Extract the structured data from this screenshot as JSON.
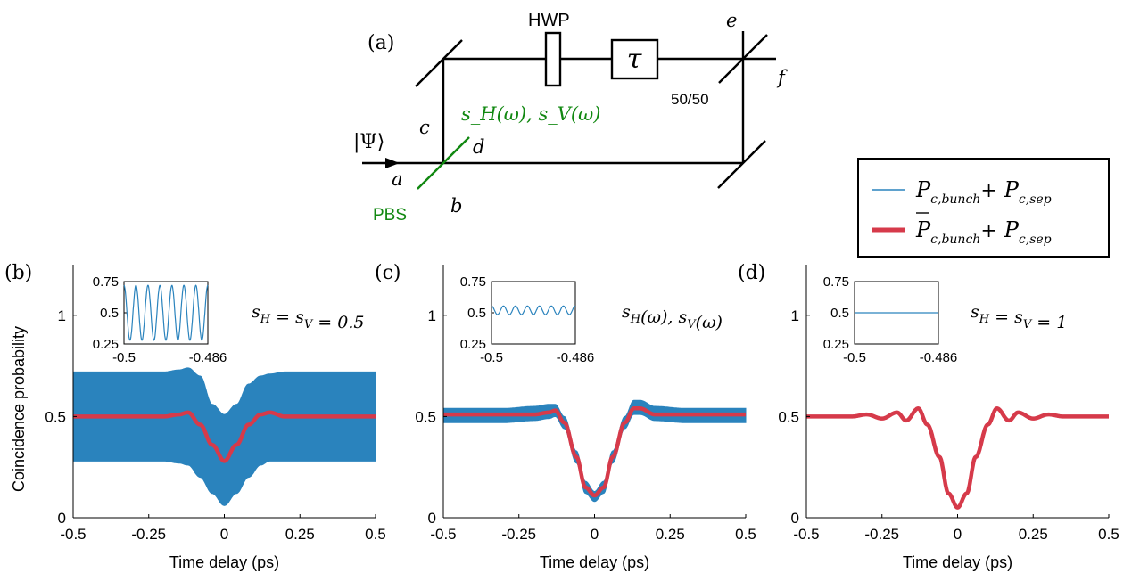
{
  "diagram": {
    "panel_label": "(a)",
    "hwp_label": "HWP",
    "tau_label": "τ",
    "bs_label": "50/50",
    "pbs_label": "PBS",
    "input_state": "|Ψ⟩",
    "port_a": "a",
    "port_b": "b",
    "port_c": "c",
    "port_d": "d",
    "port_e": "e",
    "port_f": "f",
    "spectrum_label": "s_H(ω), s_V(ω)",
    "color_pbs": "#118811"
  },
  "legend": {
    "items": [
      {
        "term1": "P",
        "term1_sub": "c,bunch",
        "plus": "+",
        "term2": "P",
        "term2_sub": "c,sep",
        "overline": false,
        "color": "#2a83bd"
      },
      {
        "term1": "P",
        "term1_sub": "c,bunch",
        "plus": "+",
        "term2": "P",
        "term2_sub": "c,sep",
        "overline": true,
        "color": "#d63a4a"
      }
    ]
  },
  "colors": {
    "raw": "#2a83bd",
    "avg": "#d63a4a"
  },
  "chart_data": [
    {
      "panel_label": "(b)",
      "type": "area",
      "xlabel": "Time delay (ps)",
      "ylabel": "Coincidence probability",
      "xlim": [
        -0.5,
        0.5
      ],
      "ylim": [
        0,
        1.25
      ],
      "xticks": [
        -0.5,
        -0.25,
        0,
        0.25,
        0.5
      ],
      "xtick_labels": [
        "-0.5",
        "-0.25",
        "0",
        "0.25",
        "0.5"
      ],
      "yticks": [
        0,
        0.5,
        1
      ],
      "ytick_labels": [
        "0",
        "0.5",
        "1"
      ],
      "annotation": "s_H = s_V = 0.5",
      "envelope": {
        "x": [
          -0.5,
          -0.3,
          -0.2,
          -0.15,
          -0.12,
          -0.08,
          -0.04,
          0,
          0.04,
          0.08,
          0.12,
          0.15,
          0.2,
          0.3,
          0.5
        ],
        "upper": [
          0.72,
          0.72,
          0.72,
          0.73,
          0.74,
          0.7,
          0.56,
          0.51,
          0.56,
          0.66,
          0.7,
          0.71,
          0.72,
          0.72,
          0.72
        ],
        "lower": [
          0.28,
          0.28,
          0.28,
          0.27,
          0.26,
          0.2,
          0.12,
          0.06,
          0.12,
          0.2,
          0.26,
          0.28,
          0.28,
          0.28,
          0.28
        ]
      },
      "mean": {
        "x": [
          -0.5,
          -0.3,
          -0.2,
          -0.15,
          -0.12,
          -0.08,
          -0.04,
          0,
          0.04,
          0.08,
          0.12,
          0.15,
          0.2,
          0.3,
          0.5
        ],
        "y": [
          0.5,
          0.5,
          0.5,
          0.51,
          0.52,
          0.46,
          0.36,
          0.28,
          0.36,
          0.46,
          0.51,
          0.52,
          0.5,
          0.5,
          0.5
        ]
      },
      "inset": {
        "xlim": [
          -0.5,
          -0.486
        ],
        "ylim": [
          0.25,
          0.75
        ],
        "xtick_labels": [
          "-0.5",
          "-0.486"
        ],
        "yticks": [
          0.25,
          0.5,
          0.75
        ],
        "ytick_labels": [
          "0.25",
          "0.5",
          "0.75"
        ],
        "mean": 0.5,
        "amplitude": 0.22,
        "cycles": 7
      }
    },
    {
      "panel_label": "(c)",
      "type": "area",
      "xlabel": "Time delay (ps)",
      "ylabel": "",
      "xlim": [
        -0.5,
        0.5
      ],
      "ylim": [
        0,
        1.25
      ],
      "xticks": [
        -0.5,
        -0.25,
        0,
        0.25,
        0.5
      ],
      "xtick_labels": [
        "-0.5",
        "-0.25",
        "0",
        "0.25",
        "0.5"
      ],
      "yticks": [
        0,
        0.5,
        1
      ],
      "ytick_labels": [
        "0",
        "0.5",
        "1"
      ],
      "annotation": "s_H(ω), s_V(ω)",
      "envelope": {
        "x": [
          -0.5,
          -0.3,
          -0.2,
          -0.15,
          -0.13,
          -0.1,
          -0.06,
          -0.03,
          0,
          0.03,
          0.06,
          0.1,
          0.13,
          0.15,
          0.2,
          0.3,
          0.5
        ],
        "upper": [
          0.54,
          0.54,
          0.55,
          0.56,
          0.56,
          0.5,
          0.33,
          0.18,
          0.13,
          0.18,
          0.33,
          0.5,
          0.58,
          0.58,
          0.55,
          0.54,
          0.54
        ],
        "lower": [
          0.47,
          0.47,
          0.48,
          0.49,
          0.5,
          0.44,
          0.27,
          0.12,
          0.08,
          0.12,
          0.27,
          0.44,
          0.51,
          0.51,
          0.48,
          0.47,
          0.47
        ]
      },
      "mean": {
        "x": [
          -0.5,
          -0.3,
          -0.2,
          -0.15,
          -0.13,
          -0.1,
          -0.06,
          -0.03,
          0,
          0.03,
          0.06,
          0.1,
          0.13,
          0.15,
          0.2,
          0.3,
          0.5
        ],
        "y": [
          0.51,
          0.51,
          0.51,
          0.52,
          0.53,
          0.47,
          0.3,
          0.15,
          0.11,
          0.15,
          0.3,
          0.47,
          0.54,
          0.54,
          0.51,
          0.51,
          0.51
        ]
      },
      "inset": {
        "xlim": [
          -0.5,
          -0.486
        ],
        "ylim": [
          0.25,
          0.75
        ],
        "xtick_labels": [
          "-0.5",
          "-0.486"
        ],
        "yticks": [
          0.25,
          0.5,
          0.75
        ],
        "ytick_labels": [
          "0.25",
          "0.5",
          "0.75"
        ],
        "mean": 0.52,
        "amplitude": 0.035,
        "cycles": 7
      }
    },
    {
      "panel_label": "(d)",
      "type": "line",
      "xlabel": "Time delay (ps)",
      "ylabel": "",
      "xlim": [
        -0.5,
        0.5
      ],
      "ylim": [
        0,
        1.25
      ],
      "xticks": [
        -0.5,
        -0.25,
        0,
        0.25,
        0.5
      ],
      "xtick_labels": [
        "-0.5",
        "-0.25",
        "0",
        "0.25",
        "0.5"
      ],
      "yticks": [
        0,
        0.5,
        1
      ],
      "ytick_labels": [
        "0",
        "0.5",
        "1"
      ],
      "annotation": "s_H = s_V = 1",
      "envelope": null,
      "mean": {
        "x": [
          -0.5,
          -0.35,
          -0.3,
          -0.25,
          -0.2,
          -0.17,
          -0.13,
          -0.1,
          -0.06,
          -0.03,
          0,
          0.03,
          0.06,
          0.1,
          0.13,
          0.17,
          0.2,
          0.25,
          0.3,
          0.35,
          0.5
        ],
        "y": [
          0.5,
          0.5,
          0.51,
          0.49,
          0.52,
          0.48,
          0.54,
          0.46,
          0.3,
          0.12,
          0.05,
          0.12,
          0.3,
          0.46,
          0.54,
          0.48,
          0.52,
          0.49,
          0.51,
          0.5,
          0.5
        ]
      },
      "inset": {
        "xlim": [
          -0.5,
          -0.486
        ],
        "ylim": [
          0.25,
          0.75
        ],
        "xtick_labels": [
          "-0.5",
          "-0.486"
        ],
        "yticks": [
          0.25,
          0.5,
          0.75
        ],
        "ytick_labels": [
          "0.25",
          "0.5",
          "0.75"
        ],
        "mean": 0.5,
        "amplitude": 0.0,
        "cycles": 0
      }
    }
  ]
}
